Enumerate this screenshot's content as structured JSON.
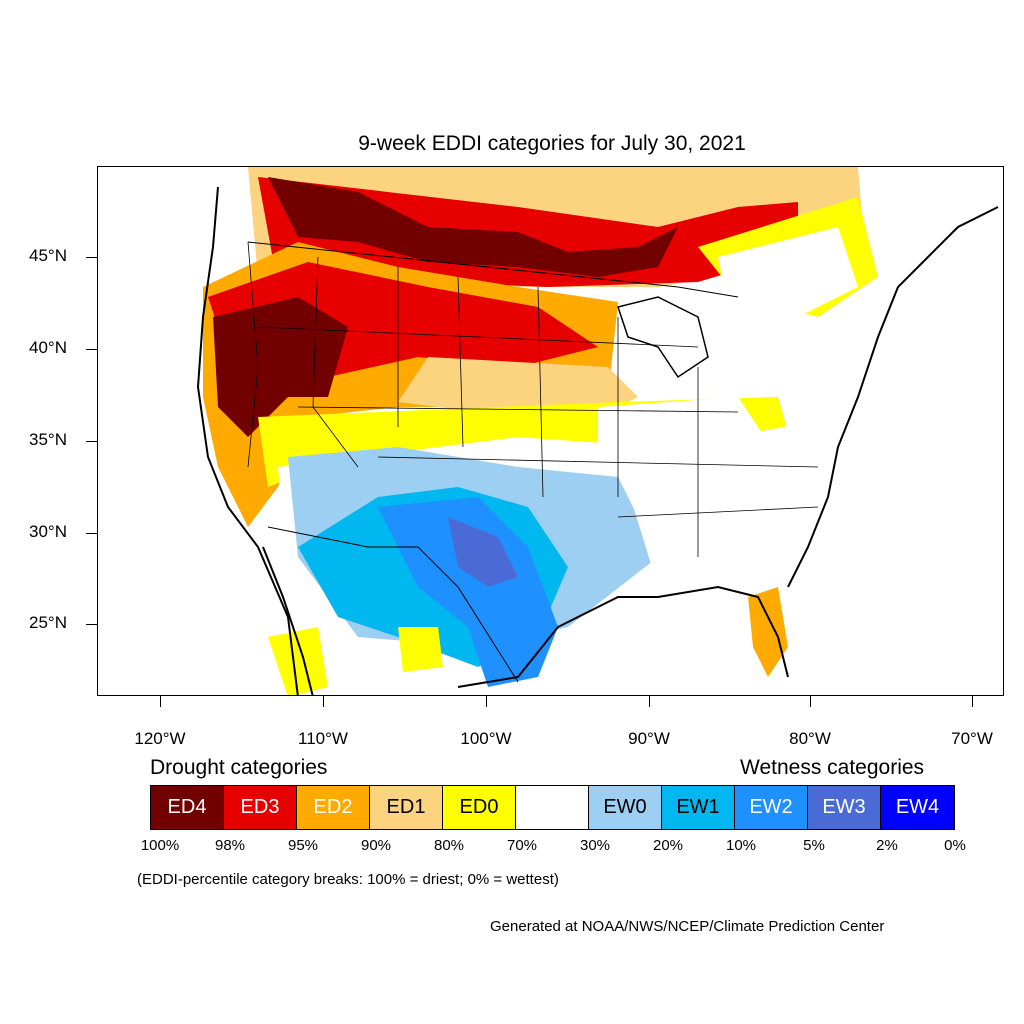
{
  "title": "9-week EDDI categories for July 30, 2021",
  "axes": {
    "y_labels": [
      "45°N",
      "40°N",
      "35°N",
      "30°N",
      "25°N"
    ],
    "x_labels": [
      "120°W",
      "110°W",
      "100°W",
      "90°W",
      "80°W",
      "70°W"
    ]
  },
  "legend": {
    "drought_heading": "Drought categories",
    "wetness_heading": "Wetness categories",
    "categories": [
      {
        "label": "ED4",
        "color": "#730000"
      },
      {
        "label": "ED3",
        "color": "#e60000"
      },
      {
        "label": "ED2",
        "color": "#ffaa00"
      },
      {
        "label": "ED1",
        "color": "#fcd37f"
      },
      {
        "label": "ED0",
        "color": "#ffff00"
      },
      {
        "label": "",
        "color": "#ffffff"
      },
      {
        "label": "EW0",
        "color": "#9dcff2"
      },
      {
        "label": "EW1",
        "color": "#00b7ef"
      },
      {
        "label": "EW2",
        "color": "#1e90ff"
      },
      {
        "label": "EW3",
        "color": "#4a6ad6"
      },
      {
        "label": "EW4",
        "color": "#0000ff"
      }
    ],
    "percentiles": [
      "100%",
      "98%",
      "95%",
      "90%",
      "80%",
      "70%",
      "30%",
      "20%",
      "10%",
      "5%",
      "2%",
      "0%"
    ]
  },
  "note": "(EDDI-percentile category breaks: 100% = driest; 0% = wettest)",
  "credit": "Generated at NOAA/NWS/NCEP/Climate Prediction Center"
}
